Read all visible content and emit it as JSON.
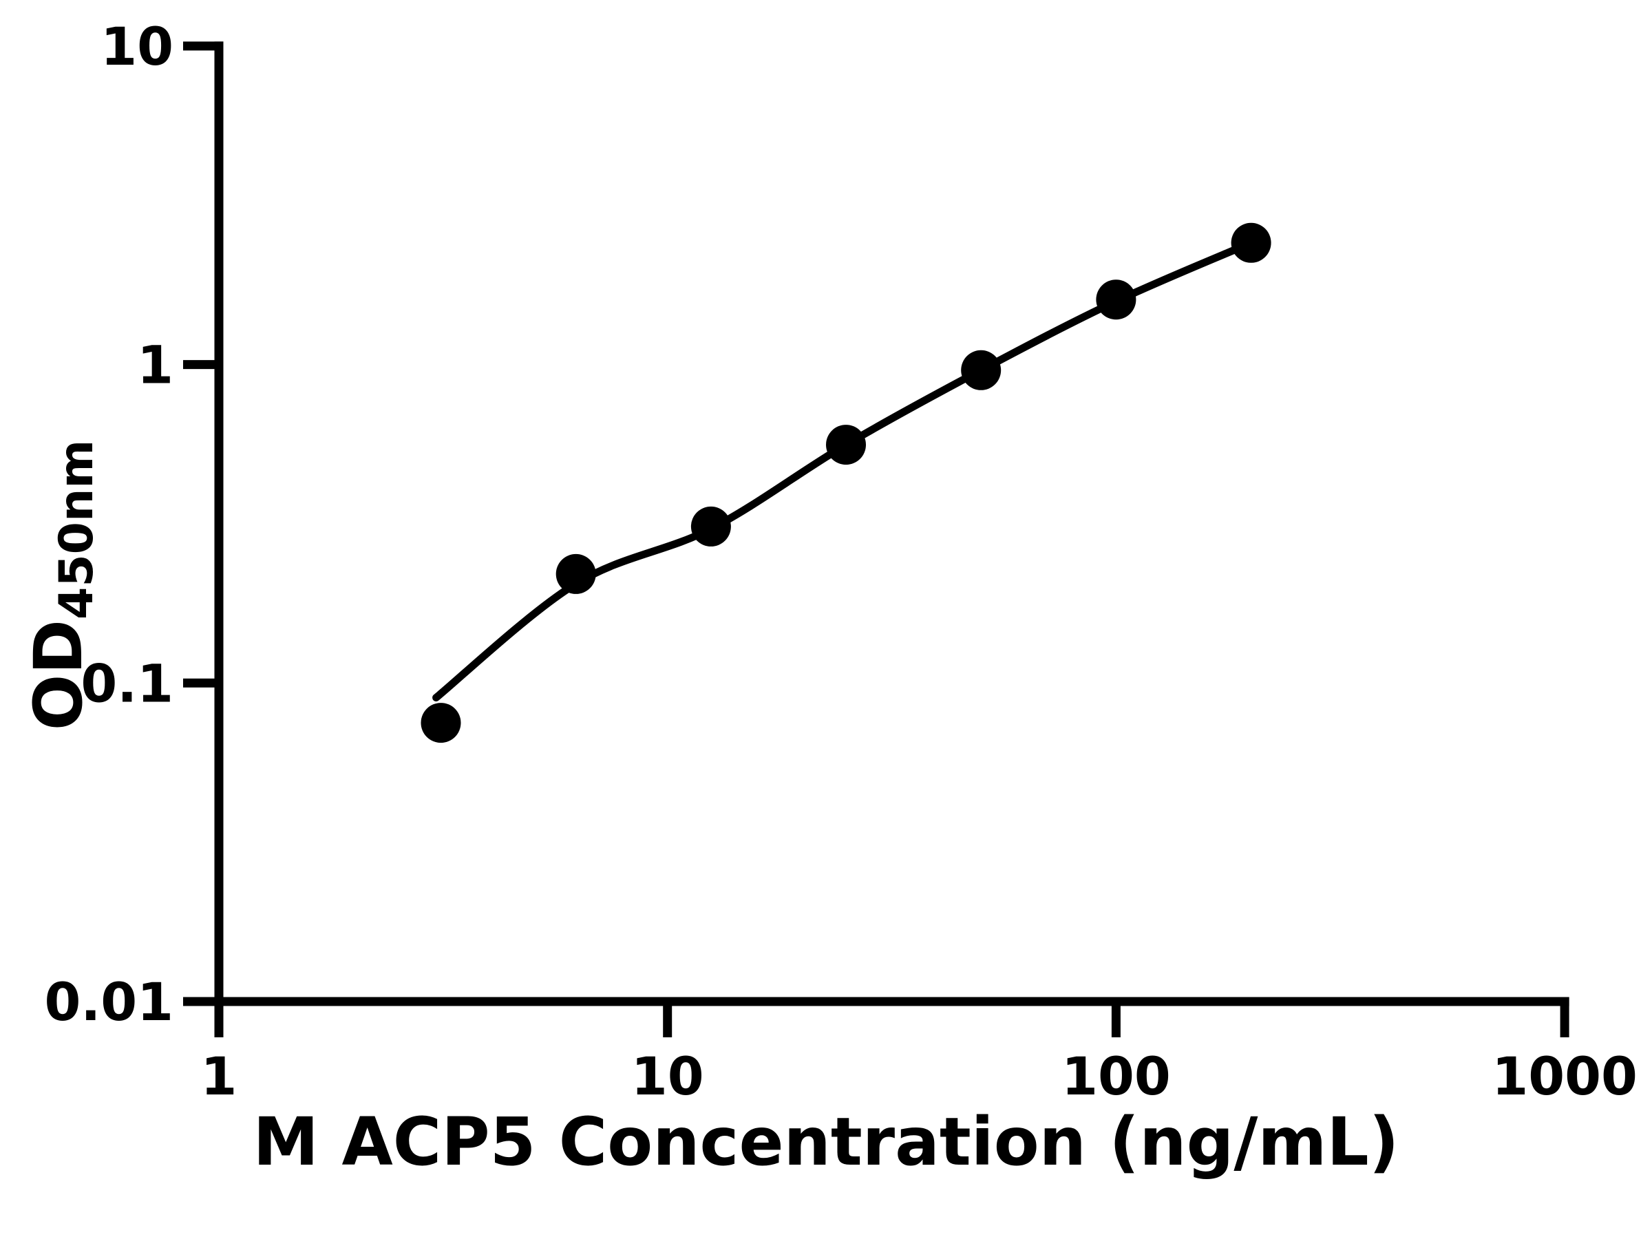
{
  "figure": {
    "background": "#ffffff",
    "ink": "#000000"
  },
  "chart_data": {
    "type": "scatter",
    "title": "",
    "xlabel": "M ACP5 Concentration (ng/mL)",
    "ylabel_main": "OD",
    "ylabel_sub": "450nm",
    "x_scale": "log",
    "y_scale": "log",
    "xlim": [
      1,
      1000
    ],
    "ylim": [
      0.01,
      10
    ],
    "x_ticks": [
      1,
      10,
      100,
      1000
    ],
    "x_tick_labels": [
      "1",
      "10",
      "100",
      "1000"
    ],
    "y_ticks": [
      10,
      1,
      0.1,
      0.01
    ],
    "y_tick_labels": [
      "10",
      "1",
      "0.1",
      "0.01"
    ],
    "grid": false,
    "legend": null,
    "marker_color": "#000000",
    "line_color": "#000000",
    "series": [
      {
        "name": "standard-points",
        "type": "scatter",
        "marker": "circle",
        "x": [
          3.125,
          6.25,
          12.5,
          25,
          50,
          100,
          200
        ],
        "y": [
          0.075,
          0.22,
          0.31,
          0.56,
          0.96,
          1.6,
          2.41
        ]
      },
      {
        "name": "fit-curve",
        "type": "line",
        "x": [
          3.05,
          6.25,
          12.5,
          25,
          50,
          100,
          200
        ],
        "y": [
          0.09,
          0.205,
          0.305,
          0.56,
          0.96,
          1.58,
          2.41
        ]
      }
    ]
  }
}
